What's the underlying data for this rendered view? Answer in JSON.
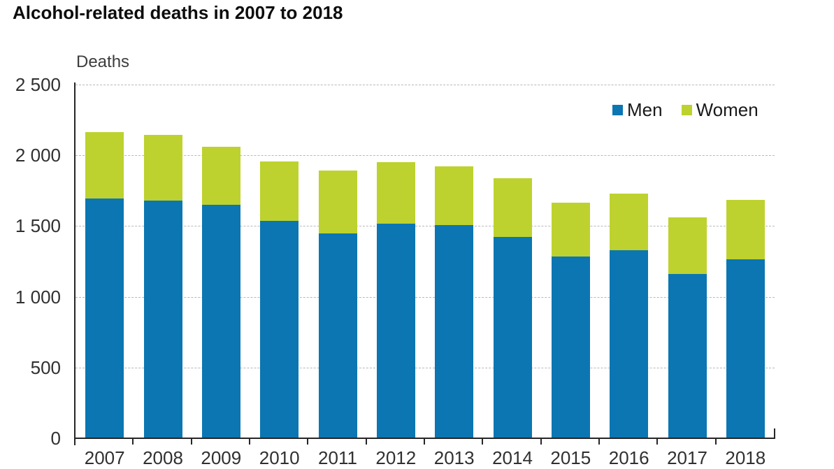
{
  "chart_data": {
    "type": "bar",
    "stacked": true,
    "title": "Alcohol-related deaths in 2007 to 2018",
    "ylabel": "Deaths",
    "xlabel": "",
    "categories": [
      "2007",
      "2008",
      "2009",
      "2010",
      "2011",
      "2012",
      "2013",
      "2014",
      "2015",
      "2016",
      "2017",
      "2018"
    ],
    "series": [
      {
        "name": "Men",
        "color": "#0b76b2",
        "values": [
          1695,
          1680,
          1650,
          1535,
          1450,
          1515,
          1505,
          1425,
          1285,
          1330,
          1160,
          1265
        ]
      },
      {
        "name": "Women",
        "color": "#bdd22e",
        "values": [
          470,
          465,
          410,
          420,
          440,
          435,
          415,
          415,
          380,
          400,
          400,
          420
        ]
      }
    ],
    "totals": [
      2165,
      2145,
      2060,
      1955,
      1890,
      1950,
      1920,
      1840,
      1665,
      1730,
      1560,
      1685
    ],
    "ylim": [
      0,
      2500
    ],
    "ytick_interval": 500,
    "ytick_labels": [
      "0",
      "500",
      "1 000",
      "1 500",
      "2 000",
      "2 500"
    ],
    "grid": "horizontal-dashed",
    "legend_position": "top-right-inside"
  },
  "colors": {
    "axis": "#262626",
    "gridline": "#b8b8b8",
    "tick_text": "#303030",
    "title_text": "#0d0d0d"
  }
}
